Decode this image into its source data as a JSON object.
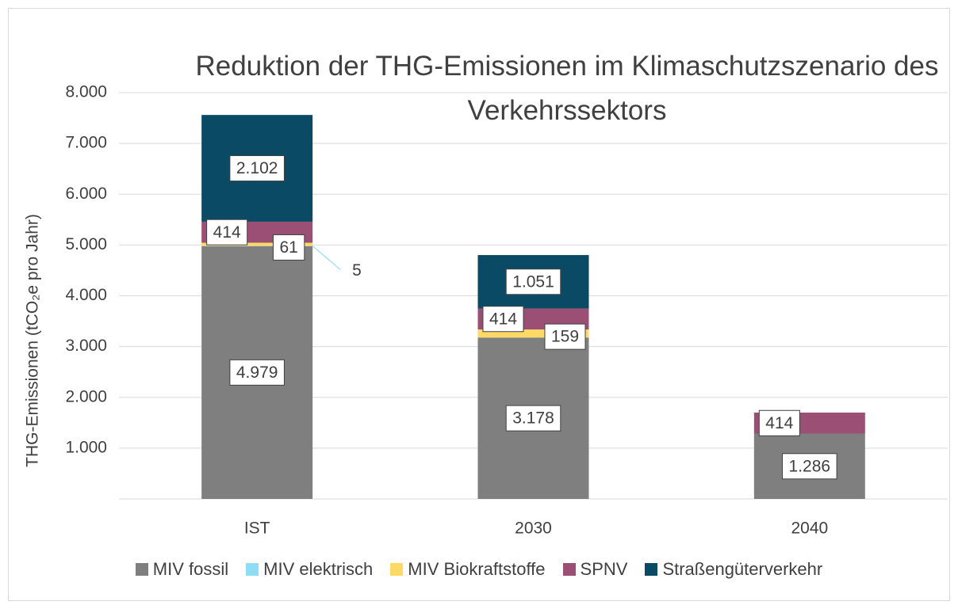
{
  "chart_data": {
    "type": "stacked_bar",
    "title": "Reduktion der THG-Emissionen im Klimaschutzszenario des Verkehrssektors",
    "y_label": "THG-Emissionen (tCO₂e pro Jahr)",
    "categories": [
      "IST",
      "2030",
      "2040"
    ],
    "series": [
      {
        "name": "MIV fossil",
        "color": "#7f7f7f",
        "values": [
          4979,
          3178,
          1286
        ],
        "value_labels": [
          "4.979",
          "3.178",
          "1.286"
        ]
      },
      {
        "name": "MIV elektrisch",
        "color": "#8fdcf5",
        "values": [
          5,
          null,
          null
        ],
        "value_labels": [
          "5",
          null,
          null
        ]
      },
      {
        "name": "MIV Biokraftstoffe",
        "color": "#ffd966",
        "values": [
          61,
          159,
          null
        ],
        "value_labels": [
          "61",
          "159",
          null
        ]
      },
      {
        "name": "SPNV",
        "color": "#9c4f74",
        "values": [
          414,
          414,
          414
        ],
        "value_labels": [
          "414",
          "414",
          "414"
        ]
      },
      {
        "name": "Straßengüterverkehr",
        "color": "#0b4a64",
        "values": [
          2102,
          1051,
          null
        ],
        "value_labels": [
          "2.102",
          "1.051",
          null
        ]
      }
    ],
    "ylim": [
      0,
      8000
    ],
    "yticks": [
      {
        "value": 1000,
        "label": "1.000"
      },
      {
        "value": 2000,
        "label": "2.000"
      },
      {
        "value": 3000,
        "label": "3.000"
      },
      {
        "value": 4000,
        "label": "4.000"
      },
      {
        "value": 5000,
        "label": "5.000"
      },
      {
        "value": 6000,
        "label": "6.000"
      },
      {
        "value": 7000,
        "label": "7.000"
      },
      {
        "value": 8000,
        "label": "8.000"
      }
    ],
    "grid": true
  }
}
